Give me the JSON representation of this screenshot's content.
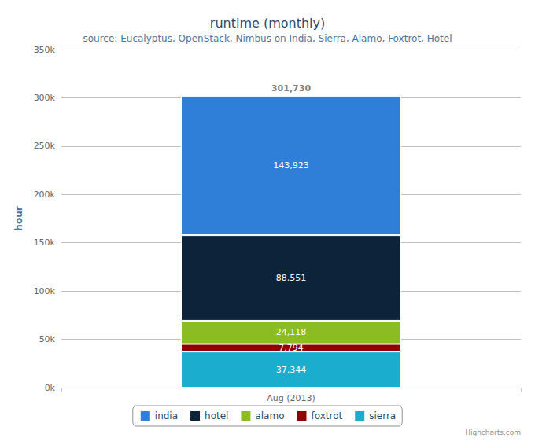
{
  "chart_data": {
    "type": "bar",
    "title": "runtime (monthly)",
    "subtitle": "source: Eucalyptus, OpenStack, Nimbus on India, Sierra, Alamo, Foxtrot, Hotel",
    "y_label": "hour",
    "credits": "Highcharts.com",
    "categories": [
      "Aug (2013)"
    ],
    "series": [
      {
        "name": "india",
        "color": "#2f7ed8",
        "values": [
          143923
        ],
        "value_labels": [
          "143,923"
        ]
      },
      {
        "name": "hotel",
        "color": "#0d233a",
        "values": [
          88551
        ],
        "value_labels": [
          "88,551"
        ]
      },
      {
        "name": "alamo",
        "color": "#8bbc21",
        "values": [
          24118
        ],
        "value_labels": [
          "24,118"
        ]
      },
      {
        "name": "foxtrot",
        "color": "#910000",
        "values": [
          7794
        ],
        "value_labels": [
          "7,794"
        ]
      },
      {
        "name": "sierra",
        "color": "#1aadce",
        "values": [
          37344
        ],
        "value_labels": [
          "37,344"
        ]
      }
    ],
    "totals": [
      301730
    ],
    "total_labels": [
      "301,730"
    ],
    "ylim": [
      0,
      350000
    ],
    "yticks": [
      {
        "value": 0,
        "label": "0k"
      },
      {
        "value": 50000,
        "label": "50k"
      },
      {
        "value": 100000,
        "label": "100k"
      },
      {
        "value": 150000,
        "label": "150k"
      },
      {
        "value": 200000,
        "label": "200k"
      },
      {
        "value": 250000,
        "label": "250k"
      },
      {
        "value": 300000,
        "label": "300k"
      },
      {
        "value": 350000,
        "label": "350k"
      }
    ],
    "stacked": true,
    "data_labels": true,
    "grid": true,
    "legend": "bottom"
  }
}
